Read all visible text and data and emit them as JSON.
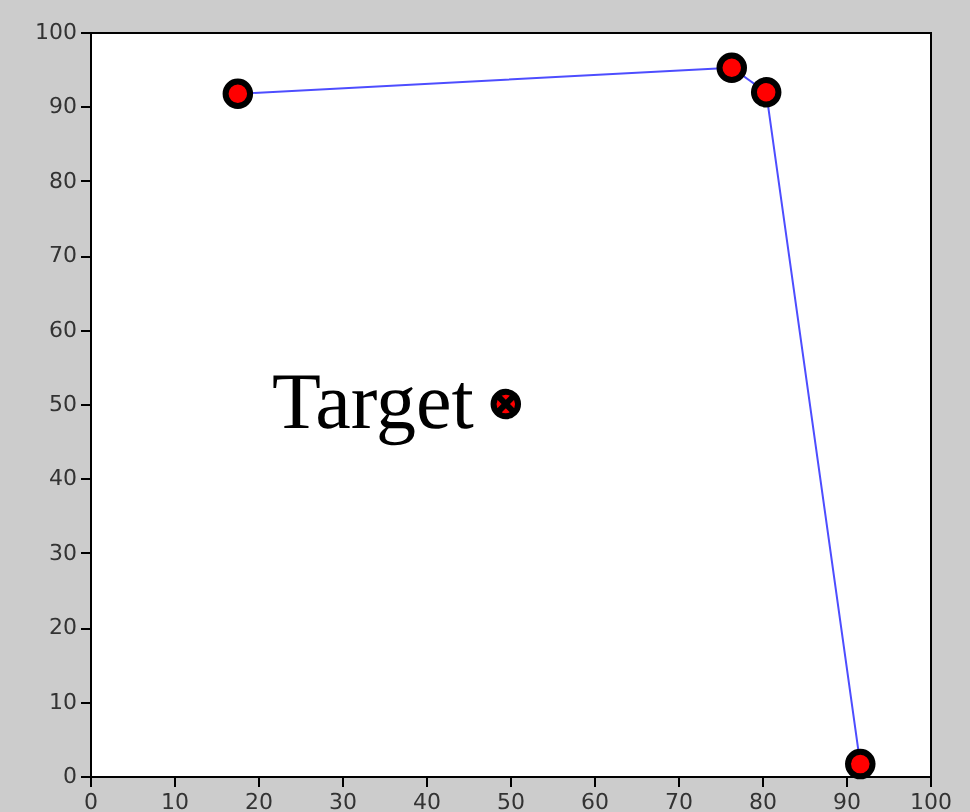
{
  "chart_data": {
    "type": "line",
    "x": [
      17.6,
      76.4,
      80.5,
      91.7
    ],
    "series": [
      {
        "color": "#4d4dff",
        "values": [
          91.7,
          95.2,
          91.9,
          1.6
        ],
        "marker": "circle"
      },
      {
        "type": "scatter",
        "color": "#ff0000",
        "x": [
          49.5
        ],
        "values": [
          50
        ],
        "marker": "cross"
      }
    ],
    "annotations": [
      {
        "text": "Target",
        "x": 49.5,
        "y": 50
      }
    ],
    "xlim": [
      0,
      100
    ],
    "xticks": [
      0,
      10,
      20,
      30,
      40,
      50,
      60,
      70,
      80,
      90,
      100
    ],
    "ylim": [
      0,
      100
    ],
    "yticks": [
      0,
      10,
      20,
      30,
      40,
      50,
      60,
      70,
      80,
      90,
      100
    ],
    "grid": false,
    "line_style": "solid"
  }
}
